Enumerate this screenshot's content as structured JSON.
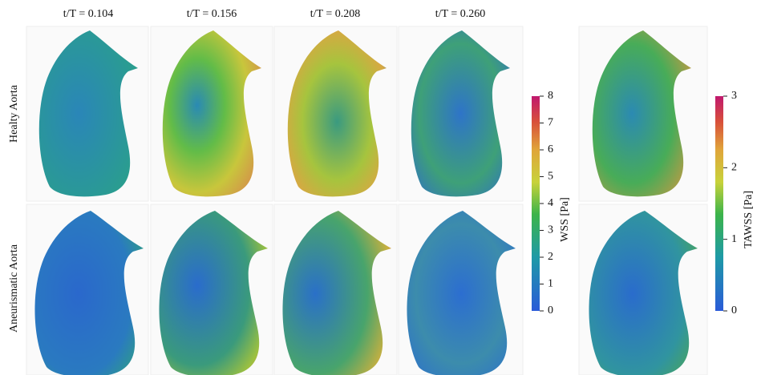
{
  "column_titles": [
    "t/T = 0.104",
    "t/T = 0.156",
    "t/T = 0.208",
    "t/T = 0.260"
  ],
  "row_titles": [
    "Healty Aorta",
    "Aneurismatic Aorta"
  ],
  "colorbars": [
    {
      "label": "WSS [Pa]",
      "range": [
        0,
        8
      ],
      "ticks": [
        0,
        1,
        2,
        3,
        4,
        5,
        6,
        7,
        8
      ]
    },
    {
      "label": "TAWSS [Pa]",
      "range": [
        0,
        3
      ],
      "ticks": [
        0,
        1,
        2,
        3
      ]
    }
  ]
}
